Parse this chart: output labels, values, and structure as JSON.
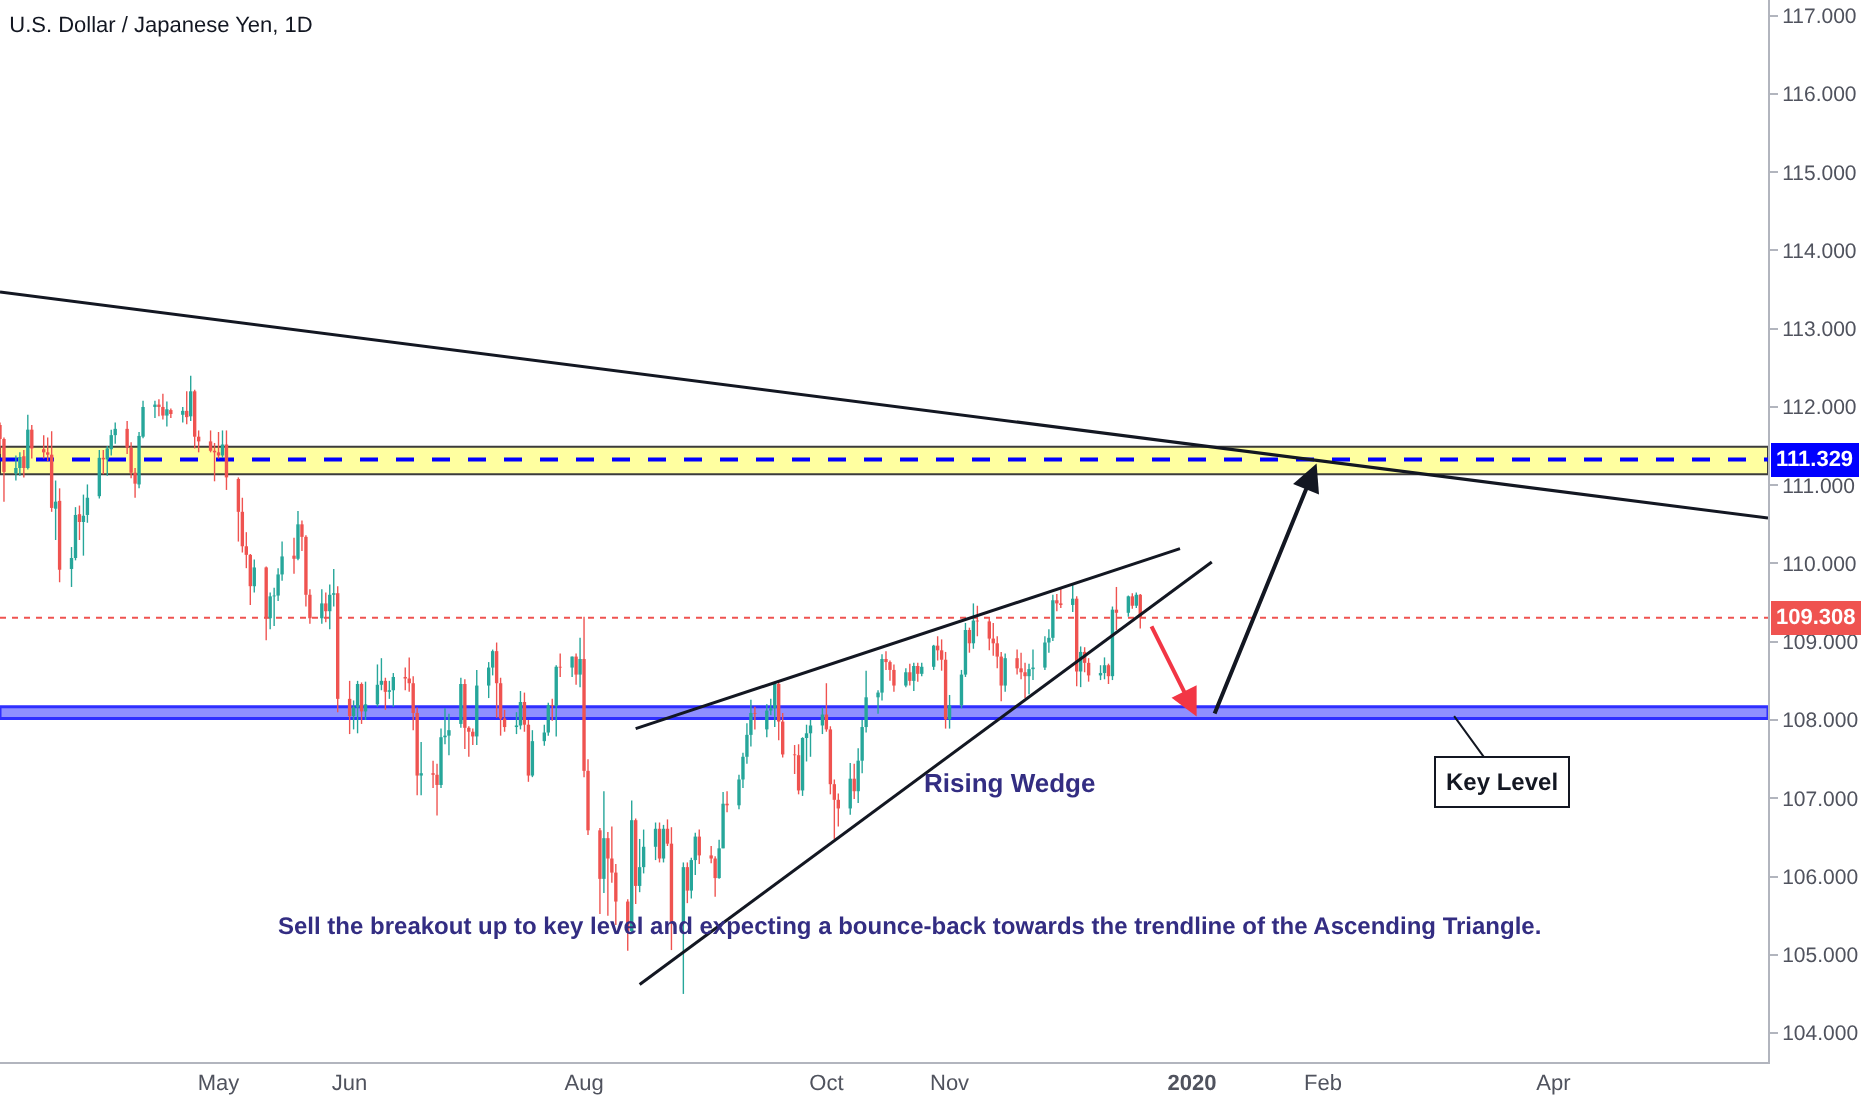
{
  "chart_data": {
    "type": "candlestick",
    "title": "U.S. Dollar / Japanese Yen, 1D",
    "xlim": [
      "2019-03-07",
      "2020-05-25"
    ],
    "xticks": [
      {
        "value": "2019-05-01",
        "label": "May"
      },
      {
        "value": "2019-06-03",
        "label": "Jun"
      },
      {
        "value": "2019-08-01",
        "label": "Aug"
      },
      {
        "value": "2019-10-01",
        "label": "Oct"
      },
      {
        "value": "2019-11-01",
        "label": "Nov"
      },
      {
        "value": "2020-01-01",
        "label": "2020"
      },
      {
        "value": "2020-02-03",
        "label": "Feb"
      },
      {
        "value": "2020-04-01",
        "label": "Apr"
      }
    ],
    "ylim": [
      103.63,
      117.2
    ],
    "yticks": [
      {
        "value": 104,
        "label": "104.000"
      },
      {
        "value": 105,
        "label": "105.000"
      },
      {
        "value": 106,
        "label": "106.000"
      },
      {
        "value": 107,
        "label": "107.000"
      },
      {
        "value": 108,
        "label": "108.000"
      },
      {
        "value": 109,
        "label": "109.000"
      },
      {
        "value": 110,
        "label": "110.000"
      },
      {
        "value": 111,
        "label": "111.000"
      },
      {
        "value": 112,
        "label": "112.000"
      },
      {
        "value": 113,
        "label": "113.000"
      },
      {
        "value": 114,
        "label": "114.000"
      },
      {
        "value": 115,
        "label": "115.000"
      },
      {
        "value": 116,
        "label": "116.000"
      },
      {
        "value": 117,
        "label": "117.000"
      }
    ],
    "bands": [
      {
        "axis": "y",
        "from": 111.14,
        "to": 111.49,
        "color": "#ffffa0"
      },
      {
        "axis": "y",
        "from": 108.02,
        "to": 108.17,
        "color": "#8f8fff"
      }
    ],
    "ref_lines": [
      {
        "axis": "y",
        "value": 111.329,
        "label": "111.329",
        "color": "#0000ff",
        "line_style": "dashed"
      },
      {
        "axis": "y",
        "value": 109.308,
        "label": "109.308",
        "color": "#ef5350",
        "line_style": "dotted"
      }
    ],
    "annotations": [
      "Rising Wedge",
      {
        "text": "Key Level",
        "x": "2020-03-07",
        "y": 108.05
      },
      "Sell the breakout up to key level and expecting a bounce-back towards the trendline of the Ascending Triangle."
    ],
    "series": [
      {
        "type": "line",
        "color": "#131722",
        "x": [
          "2019-03-07",
          "2020-05-25"
        ],
        "values": [
          113.47,
          110.58
        ]
      },
      {
        "type": "line",
        "color": "#131722",
        "x": [
          "2019-08-14",
          "2019-12-29"
        ],
        "values": [
          107.89,
          110.19
        ]
      },
      {
        "type": "line",
        "color": "#131722",
        "x": [
          "2019-08-15",
          "2020-01-06"
        ],
        "values": [
          104.62,
          110.02
        ]
      }
    ],
    "x": [
      "2019-03-07",
      "2019-03-08",
      "2019-03-11",
      "2019-03-12",
      "2019-03-13",
      "2019-03-14",
      "2019-03-15",
      "2019-03-18",
      "2019-03-19",
      "2019-03-20",
      "2019-03-21",
      "2019-03-22",
      "2019-03-25",
      "2019-03-26",
      "2019-03-27",
      "2019-03-28",
      "2019-03-29",
      "2019-04-01",
      "2019-04-02",
      "2019-04-03",
      "2019-04-04",
      "2019-04-05",
      "2019-04-08",
      "2019-04-09",
      "2019-04-10",
      "2019-04-11",
      "2019-04-12",
      "2019-04-15",
      "2019-04-16",
      "2019-04-17",
      "2019-04-18",
      "2019-04-19",
      "2019-04-22",
      "2019-04-23",
      "2019-04-24",
      "2019-04-25",
      "2019-04-26",
      "2019-04-29",
      "2019-04-30",
      "2019-05-01",
      "2019-05-02",
      "2019-05-03",
      "2019-05-06",
      "2019-05-07",
      "2019-05-08",
      "2019-05-09",
      "2019-05-10",
      "2019-05-13",
      "2019-05-14",
      "2019-05-15",
      "2019-05-16",
      "2019-05-17",
      "2019-05-20",
      "2019-05-21",
      "2019-05-22",
      "2019-05-23",
      "2019-05-24",
      "2019-05-27",
      "2019-05-28",
      "2019-05-29",
      "2019-05-30",
      "2019-05-31",
      "2019-06-03",
      "2019-06-04",
      "2019-06-05",
      "2019-06-06",
      "2019-06-07",
      "2019-06-10",
      "2019-06-11",
      "2019-06-12",
      "2019-06-13",
      "2019-06-14",
      "2019-06-17",
      "2019-06-18",
      "2019-06-19",
      "2019-06-20",
      "2019-06-21",
      "2019-06-24",
      "2019-06-25",
      "2019-06-26",
      "2019-06-27",
      "2019-06-28",
      "2019-07-01",
      "2019-07-02",
      "2019-07-03",
      "2019-07-04",
      "2019-07-05",
      "2019-07-08",
      "2019-07-09",
      "2019-07-10",
      "2019-07-11",
      "2019-07-12",
      "2019-07-15",
      "2019-07-16",
      "2019-07-17",
      "2019-07-18",
      "2019-07-19",
      "2019-07-22",
      "2019-07-23",
      "2019-07-24",
      "2019-07-25",
      "2019-07-26",
      "2019-07-29",
      "2019-07-30",
      "2019-07-31",
      "2019-08-01",
      "2019-08-02",
      "2019-08-05",
      "2019-08-06",
      "2019-08-07",
      "2019-08-08",
      "2019-08-09",
      "2019-08-12",
      "2019-08-13",
      "2019-08-14",
      "2019-08-15",
      "2019-08-16",
      "2019-08-19",
      "2019-08-20",
      "2019-08-21",
      "2019-08-22",
      "2019-08-23",
      "2019-08-26",
      "2019-08-27",
      "2019-08-28",
      "2019-08-29",
      "2019-08-30",
      "2019-09-02",
      "2019-09-03",
      "2019-09-04",
      "2019-09-05",
      "2019-09-06",
      "2019-09-09",
      "2019-09-10",
      "2019-09-11",
      "2019-09-12",
      "2019-09-13",
      "2019-09-16",
      "2019-09-17",
      "2019-09-18",
      "2019-09-19",
      "2019-09-20",
      "2019-09-23",
      "2019-09-24",
      "2019-09-25",
      "2019-09-26",
      "2019-09-27",
      "2019-09-30",
      "2019-10-01",
      "2019-10-02",
      "2019-10-03",
      "2019-10-04",
      "2019-10-07",
      "2019-10-08",
      "2019-10-09",
      "2019-10-10",
      "2019-10-11",
      "2019-10-14",
      "2019-10-15",
      "2019-10-16",
      "2019-10-17",
      "2019-10-18",
      "2019-10-21",
      "2019-10-22",
      "2019-10-23",
      "2019-10-24",
      "2019-10-25",
      "2019-10-28",
      "2019-10-29",
      "2019-10-30",
      "2019-10-31",
      "2019-11-01",
      "2019-11-04",
      "2019-11-05",
      "2019-11-06",
      "2019-11-07",
      "2019-11-08",
      "2019-11-11",
      "2019-11-12",
      "2019-11-13",
      "2019-11-14",
      "2019-11-15",
      "2019-11-18",
      "2019-11-19",
      "2019-11-20",
      "2019-11-21",
      "2019-11-22",
      "2019-11-25",
      "2019-11-26",
      "2019-11-27",
      "2019-11-28",
      "2019-11-29",
      "2019-12-02",
      "2019-12-03",
      "2019-12-04",
      "2019-12-05",
      "2019-12-06",
      "2019-12-09",
      "2019-12-10",
      "2019-12-11",
      "2019-12-12",
      "2019-12-13",
      "2019-12-16",
      "2019-12-17",
      "2019-12-18",
      "2019-12-19"
    ],
    "ohlc": [
      [
        111.77,
        111.8,
        111.4,
        111.59
      ],
      [
        111.59,
        111.61,
        110.79,
        111.17
      ],
      [
        111.15,
        111.38,
        111.06,
        111.22
      ],
      [
        111.22,
        111.42,
        111.12,
        111.36
      ],
      [
        111.37,
        111.45,
        111.1,
        111.22
      ],
      [
        111.22,
        111.9,
        111.2,
        111.71
      ],
      [
        111.71,
        111.77,
        111.34,
        111.47
      ],
      [
        111.46,
        111.64,
        111.34,
        111.42
      ],
      [
        111.42,
        111.61,
        111.31,
        111.39
      ],
      [
        111.39,
        111.69,
        110.66,
        110.71
      ],
      [
        110.7,
        111.06,
        110.3,
        110.79
      ],
      [
        110.8,
        110.96,
        109.76,
        109.92
      ],
      [
        109.93,
        110.21,
        109.7,
        110.07
      ],
      [
        110.07,
        110.72,
        110.04,
        110.62
      ],
      [
        110.63,
        110.74,
        110.3,
        110.53
      ],
      [
        110.53,
        110.88,
        110.1,
        110.61
      ],
      [
        110.62,
        111.01,
        110.52,
        110.84
      ],
      [
        110.86,
        111.45,
        110.83,
        111.35
      ],
      [
        111.35,
        111.45,
        111.14,
        111.33
      ],
      [
        111.33,
        111.5,
        111.12,
        111.47
      ],
      [
        111.46,
        111.71,
        111.38,
        111.64
      ],
      [
        111.64,
        111.8,
        111.53,
        111.72
      ],
      [
        111.72,
        111.82,
        111.4,
        111.48
      ],
      [
        111.48,
        111.55,
        111.09,
        111.16
      ],
      [
        111.16,
        111.22,
        110.84,
        111.02
      ],
      [
        111.01,
        111.68,
        110.96,
        111.63
      ],
      [
        111.62,
        112.08,
        111.6,
        112.0
      ],
      [
        112.0,
        112.08,
        111.86,
        112.03
      ],
      [
        112.03,
        112.1,
        111.88,
        112.0
      ],
      [
        112.0,
        112.17,
        111.84,
        111.89
      ],
      [
        111.89,
        112.07,
        111.75,
        111.97
      ],
      [
        111.96,
        111.98,
        111.86,
        111.91
      ],
      [
        111.9,
        112.0,
        111.8,
        111.95
      ],
      [
        111.95,
        112.2,
        111.78,
        111.87
      ],
      [
        111.88,
        112.4,
        111.82,
        112.2
      ],
      [
        112.2,
        112.22,
        111.47,
        111.62
      ],
      [
        111.62,
        111.7,
        111.42,
        111.56
      ],
      [
        111.56,
        111.7,
        111.42,
        111.44
      ],
      [
        111.44,
        111.54,
        111.05,
        111.42
      ],
      [
        111.42,
        111.68,
        111.34,
        111.38
      ],
      [
        111.38,
        111.7,
        111.35,
        111.52
      ],
      [
        111.52,
        111.7,
        110.94,
        111.1
      ],
      [
        111.08,
        111.1,
        110.28,
        110.66
      ],
      [
        110.66,
        110.84,
        110.14,
        110.22
      ],
      [
        110.22,
        110.4,
        109.94,
        110.11
      ],
      [
        110.11,
        110.12,
        109.47,
        109.71
      ],
      [
        109.71,
        110.05,
        109.63,
        109.95
      ],
      [
        109.95,
        109.96,
        109.02,
        109.3
      ],
      [
        109.3,
        109.63,
        109.16,
        109.58
      ],
      [
        109.58,
        109.69,
        109.2,
        109.59
      ],
      [
        109.59,
        109.94,
        109.52,
        109.86
      ],
      [
        109.86,
        110.28,
        109.78,
        110.09
      ],
      [
        110.1,
        110.33,
        109.87,
        110.06
      ],
      [
        110.06,
        110.67,
        110.04,
        110.5
      ],
      [
        110.5,
        110.55,
        110.16,
        110.34
      ],
      [
        110.34,
        110.36,
        109.45,
        109.6
      ],
      [
        109.6,
        109.67,
        109.23,
        109.3
      ],
      [
        109.3,
        109.67,
        109.23,
        109.49
      ],
      [
        109.49,
        109.63,
        109.25,
        109.39
      ],
      [
        109.39,
        109.73,
        109.16,
        109.6
      ],
      [
        109.6,
        109.93,
        109.45,
        109.62
      ],
      [
        109.62,
        109.71,
        108.1,
        108.27
      ],
      [
        108.27,
        108.5,
        107.82,
        108.05
      ],
      [
        108.05,
        108.25,
        107.88,
        108.16
      ],
      [
        108.16,
        108.5,
        107.83,
        108.46
      ],
      [
        108.46,
        108.48,
        107.95,
        108.11
      ],
      [
        108.11,
        108.49,
        108.0,
        108.2
      ],
      [
        108.2,
        108.71,
        108.17,
        108.45
      ],
      [
        108.45,
        108.79,
        108.38,
        108.5
      ],
      [
        108.5,
        108.54,
        108.13,
        108.36
      ],
      [
        108.36,
        108.5,
        108.27,
        108.38
      ],
      [
        108.38,
        108.6,
        108.17,
        108.55
      ],
      [
        108.55,
        108.67,
        108.38,
        108.53
      ],
      [
        108.53,
        108.8,
        108.36,
        108.47
      ],
      [
        108.47,
        108.56,
        107.87,
        108.09
      ],
      [
        108.09,
        108.16,
        107.04,
        107.29
      ],
      [
        107.29,
        107.72,
        107.04,
        107.32
      ],
      [
        107.32,
        107.48,
        107.13,
        107.3
      ],
      [
        107.3,
        107.44,
        106.78,
        107.17
      ],
      [
        107.17,
        107.89,
        107.13,
        107.78
      ],
      [
        107.78,
        108.15,
        107.69,
        107.8
      ],
      [
        107.8,
        108.08,
        107.55,
        107.87
      ],
      [
        107.95,
        108.54,
        107.9,
        108.46
      ],
      [
        108.46,
        108.52,
        107.63,
        107.9
      ],
      [
        107.9,
        107.92,
        107.53,
        107.85
      ],
      [
        107.85,
        107.89,
        107.68,
        107.79
      ],
      [
        107.79,
        108.64,
        107.68,
        108.44
      ],
      [
        108.44,
        108.74,
        108.28,
        108.67
      ],
      [
        108.67,
        108.9,
        108.57,
        108.88
      ],
      [
        108.88,
        108.99,
        108.03,
        108.47
      ],
      [
        108.47,
        108.54,
        107.8,
        108.02
      ],
      [
        108.02,
        108.13,
        107.85,
        107.91
      ],
      [
        107.91,
        108.1,
        107.82,
        107.93
      ],
      [
        107.93,
        108.37,
        107.88,
        108.23
      ],
      [
        108.23,
        108.35,
        107.85,
        107.94
      ],
      [
        107.94,
        108.0,
        107.21,
        107.29
      ],
      [
        107.29,
        107.87,
        107.27,
        107.73
      ],
      [
        107.73,
        107.94,
        107.67,
        107.84
      ],
      [
        107.84,
        108.22,
        107.8,
        108.19
      ],
      [
        108.19,
        108.27,
        107.99,
        108.18
      ],
      [
        108.18,
        108.7,
        107.79,
        108.68
      ],
      [
        108.68,
        108.85,
        108.55,
        108.67
      ],
      [
        108.67,
        108.81,
        108.55,
        108.81
      ],
      [
        108.81,
        108.85,
        108.45,
        108.58
      ],
      [
        108.58,
        109.05,
        108.42,
        108.78
      ],
      [
        108.78,
        109.32,
        107.27,
        107.35
      ],
      [
        107.35,
        107.5,
        106.53,
        106.59
      ],
      [
        106.59,
        106.62,
        105.52,
        105.97
      ],
      [
        105.97,
        107.09,
        105.79,
        106.49
      ],
      [
        106.49,
        106.57,
        105.5,
        106.23
      ],
      [
        106.23,
        106.64,
        105.92,
        106.05
      ],
      [
        106.05,
        106.16,
        105.38,
        105.68
      ],
      [
        105.68,
        105.71,
        105.05,
        105.3
      ],
      [
        105.3,
        106.97,
        105.28,
        106.72
      ],
      [
        106.72,
        106.74,
        105.65,
        105.88
      ],
      [
        105.88,
        106.48,
        105.8,
        106.12
      ],
      [
        106.12,
        106.6,
        106.04,
        106.38
      ],
      [
        106.38,
        106.69,
        106.21,
        106.61
      ],
      [
        106.61,
        106.69,
        106.18,
        106.23
      ],
      [
        106.23,
        106.66,
        106.18,
        106.61
      ],
      [
        106.61,
        106.73,
        106.39,
        106.42
      ],
      [
        106.42,
        106.63,
        105.06,
        105.4
      ],
      [
        105.4,
        106.18,
        104.5,
        106.12
      ],
      [
        106.12,
        106.18,
        105.66,
        105.82
      ],
      [
        105.82,
        106.24,
        105.72,
        106.21
      ],
      [
        106.21,
        106.56,
        106.02,
        106.51
      ],
      [
        106.51,
        106.6,
        106.16,
        106.27
      ],
      [
        106.27,
        106.39,
        106.17,
        106.23
      ],
      [
        106.23,
        106.26,
        105.74,
        105.98
      ],
      [
        105.98,
        106.47,
        105.97,
        106.36
      ],
      [
        106.36,
        107.08,
        106.36,
        106.93
      ],
      [
        106.93,
        107.09,
        106.82,
        106.91
      ],
      [
        106.91,
        107.3,
        106.86,
        107.24
      ],
      [
        107.24,
        107.58,
        107.13,
        107.53
      ],
      [
        107.53,
        107.96,
        107.44,
        107.81
      ],
      [
        107.81,
        108.26,
        107.66,
        108.09
      ],
      [
        108.09,
        108.17,
        107.88,
        108.08
      ],
      [
        107.88,
        108.2,
        107.78,
        108.12
      ],
      [
        108.12,
        108.27,
        108.06,
        108.15
      ],
      [
        108.15,
        108.48,
        107.91,
        108.46
      ],
      [
        108.46,
        108.48,
        107.74,
        107.98
      ],
      [
        107.98,
        108.09,
        107.52,
        107.56
      ],
      [
        107.56,
        107.68,
        107.31,
        107.55
      ],
      [
        107.55,
        107.69,
        107.05,
        107.1
      ],
      [
        107.1,
        107.78,
        107.03,
        107.77
      ],
      [
        107.77,
        107.94,
        107.47,
        107.83
      ],
      [
        107.83,
        108.0,
        107.53,
        107.93
      ],
      [
        107.93,
        108.16,
        107.82,
        108.07
      ],
      [
        108.07,
        108.47,
        107.85,
        107.88
      ],
      [
        107.88,
        107.92,
        107.05,
        107.18
      ],
      [
        107.18,
        107.24,
        106.48,
        106.98
      ],
      [
        106.98,
        107.06,
        106.64,
        106.87
      ],
      [
        106.87,
        107.45,
        106.79,
        107.25
      ],
      [
        107.25,
        107.44,
        106.99,
        107.09
      ],
      [
        107.09,
        107.64,
        106.94,
        107.48
      ],
      [
        107.48,
        108.0,
        107.32,
        107.91
      ],
      [
        107.91,
        108.63,
        107.84,
        108.29
      ],
      [
        108.29,
        108.38,
        108.08,
        108.35
      ],
      [
        108.35,
        108.84,
        108.25,
        108.78
      ],
      [
        108.78,
        108.88,
        108.64,
        108.74
      ],
      [
        108.74,
        108.76,
        108.5,
        108.64
      ],
      [
        108.64,
        108.71,
        108.36,
        108.44
      ],
      [
        108.44,
        108.66,
        108.42,
        108.61
      ],
      [
        108.61,
        108.72,
        108.44,
        108.5
      ],
      [
        108.5,
        108.73,
        108.37,
        108.69
      ],
      [
        108.69,
        108.73,
        108.49,
        108.59
      ],
      [
        108.59,
        108.73,
        108.56,
        108.68
      ],
      [
        108.68,
        108.96,
        108.64,
        108.95
      ],
      [
        108.95,
        109.07,
        108.76,
        108.89
      ],
      [
        108.89,
        109.03,
        108.63,
        108.77
      ],
      [
        108.77,
        108.87,
        107.89,
        108.01
      ],
      [
        108.01,
        108.32,
        107.89,
        108.19
      ],
      [
        108.19,
        108.64,
        108.15,
        108.58
      ],
      [
        108.58,
        109.24,
        108.55,
        109.15
      ],
      [
        109.15,
        109.18,
        108.86,
        108.98
      ],
      [
        108.98,
        109.49,
        108.91,
        109.27
      ],
      [
        109.27,
        109.46,
        109.07,
        109.26
      ],
      [
        109.26,
        109.3,
        108.89,
        109.04
      ],
      [
        109.04,
        109.24,
        108.82,
        108.98
      ],
      [
        108.98,
        109.07,
        108.66,
        108.81
      ],
      [
        108.81,
        108.87,
        108.24,
        108.44
      ],
      [
        108.44,
        108.85,
        108.36,
        108.79
      ],
      [
        108.79,
        108.9,
        108.58,
        108.66
      ],
      [
        108.66,
        108.86,
        108.52,
        108.61
      ],
      [
        108.61,
        108.73,
        108.28,
        108.56
      ],
      [
        108.56,
        108.72,
        108.33,
        108.65
      ],
      [
        108.65,
        108.9,
        108.51,
        108.67
      ],
      [
        108.67,
        109.07,
        108.64,
        108.99
      ],
      [
        108.99,
        109.16,
        108.86,
        109.05
      ],
      [
        109.05,
        109.6,
        109.01,
        109.53
      ],
      [
        109.53,
        109.61,
        109.39,
        109.49
      ],
      [
        109.49,
        109.68,
        109.43,
        109.47
      ],
      [
        109.47,
        109.73,
        109.38,
        109.55
      ],
      [
        109.55,
        109.58,
        108.43,
        108.62
      ],
      [
        108.62,
        108.94,
        108.42,
        108.87
      ],
      [
        108.87,
        108.93,
        108.61,
        108.73
      ],
      [
        108.73,
        108.79,
        108.49,
        108.57
      ],
      [
        108.57,
        108.7,
        108.51,
        108.6
      ],
      [
        108.6,
        108.8,
        108.52,
        108.7
      ],
      [
        108.7,
        108.72,
        108.46,
        108.56
      ],
      [
        108.56,
        109.45,
        108.51,
        109.41
      ],
      [
        109.41,
        109.7,
        109.15,
        109.37
      ],
      [
        109.37,
        109.59,
        109.32,
        109.58
      ],
      [
        109.58,
        109.62,
        109.42,
        109.46
      ],
      [
        109.46,
        109.63,
        109.43,
        109.6
      ],
      [
        109.6,
        109.61,
        109.17,
        109.31
      ]
    ],
    "colors": [
      "#ef5350",
      "#ef5350",
      "#26a69a",
      "#26a69a",
      "#ef5350",
      "#26a69a",
      "#ef5350",
      "#ef5350",
      "#ef5350",
      "#ef5350",
      "#26a69a",
      "#ef5350",
      "#26a69a",
      "#26a69a",
      "#ef5350",
      "#26a69a",
      "#26a69a",
      "#26a69a",
      "#ef5350",
      "#26a69a",
      "#26a69a",
      "#26a69a",
      "#ef5350",
      "#ef5350",
      "#ef5350",
      "#26a69a",
      "#26a69a",
      "#26a69a",
      "#ef5350",
      "#ef5350",
      "#26a69a",
      "#ef5350",
      "#26a69a",
      "#ef5350",
      "#26a69a",
      "#ef5350",
      "#ef5350",
      "#ef5350",
      "#ef5350",
      "#ef5350",
      "#26a69a",
      "#ef5350",
      "#ef5350",
      "#ef5350",
      "#ef5350",
      "#ef5350",
      "#26a69a",
      "#ef5350",
      "#26a69a",
      "#26a69a",
      "#26a69a",
      "#26a69a",
      "#ef5350",
      "#26a69a",
      "#ef5350",
      "#ef5350",
      "#ef5350",
      "#26a69a",
      "#ef5350",
      "#26a69a",
      "#26a69a",
      "#ef5350",
      "#ef5350",
      "#26a69a",
      "#26a69a",
      "#ef5350",
      "#26a69a",
      "#26a69a",
      "#26a69a",
      "#ef5350",
      "#26a69a",
      "#26a69a",
      "#ef5350",
      "#ef5350",
      "#ef5350",
      "#ef5350",
      "#26a69a",
      "#ef5350",
      "#ef5350",
      "#26a69a",
      "#26a69a",
      "#26a69a",
      "#26a69a",
      "#ef5350",
      "#ef5350",
      "#ef5350",
      "#26a69a",
      "#26a69a",
      "#26a69a",
      "#ef5350",
      "#ef5350",
      "#ef5350",
      "#26a69a",
      "#26a69a",
      "#ef5350",
      "#ef5350",
      "#26a69a",
      "#26a69a",
      "#26a69a",
      "#ef5350",
      "#26a69a",
      "#ef5350",
      "#26a69a",
      "#ef5350",
      "#26a69a",
      "#ef5350",
      "#ef5350",
      "#ef5350",
      "#26a69a",
      "#ef5350",
      "#ef5350",
      "#ef5350",
      "#ef5350",
      "#26a69a",
      "#ef5350",
      "#26a69a",
      "#26a69a",
      "#26a69a",
      "#ef5350",
      "#26a69a",
      "#ef5350",
      "#ef5350",
      "#26a69a",
      "#ef5350",
      "#26a69a",
      "#26a69a",
      "#ef5350",
      "#ef5350",
      "#ef5350",
      "#26a69a",
      "#26a69a",
      "#ef5350",
      "#26a69a",
      "#26a69a",
      "#26a69a",
      "#26a69a",
      "#ef5350",
      "#26a69a",
      "#26a69a",
      "#26a69a",
      "#ef5350",
      "#ef5350",
      "#ef5350",
      "#ef5350",
      "#26a69a",
      "#26a69a",
      "#26a69a",
      "#26a69a",
      "#ef5350",
      "#ef5350",
      "#ef5350",
      "#ef5350",
      "#26a69a",
      "#ef5350",
      "#26a69a",
      "#26a69a",
      "#26a69a",
      "#26a69a",
      "#26a69a",
      "#ef5350",
      "#ef5350",
      "#ef5350",
      "#26a69a",
      "#ef5350",
      "#26a69a",
      "#ef5350",
      "#26a69a",
      "#26a69a",
      "#ef5350",
      "#ef5350",
      "#ef5350",
      "#26a69a",
      "#26a69a",
      "#26a69a",
      "#ef5350",
      "#26a69a",
      "#ef5350",
      "#ef5350",
      "#ef5350",
      "#ef5350",
      "#ef5350",
      "#26a69a",
      "#ef5350",
      "#ef5350",
      "#ef5350",
      "#26a69a",
      "#26a69a",
      "#26a69a",
      "#26a69a",
      "#26a69a",
      "#ef5350",
      "#ef5350",
      "#26a69a",
      "#ef5350",
      "#26a69a",
      "#ef5350",
      "#ef5350",
      "#26a69a",
      "#26a69a",
      "#ef5350",
      "#26a69a",
      "#ef5350",
      "#26a69a",
      "#ef5350",
      "#26a69a",
      "#ef5350"
    ]
  }
}
